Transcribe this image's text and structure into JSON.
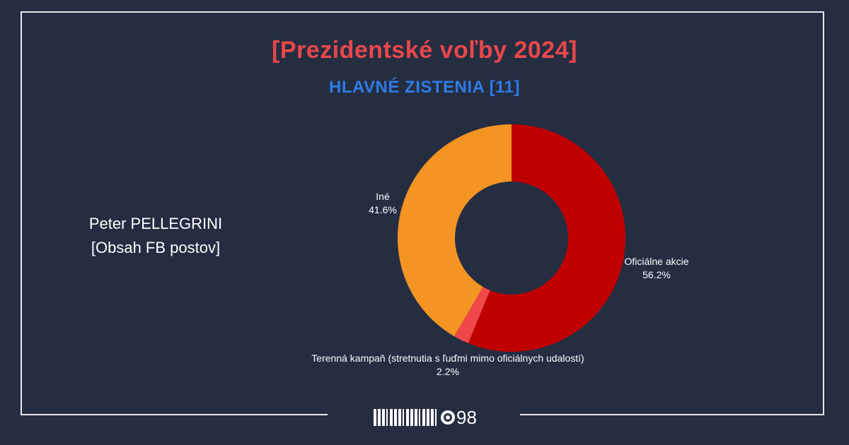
{
  "header": {
    "title": "[Prezidentské voľby 2024]",
    "subtitle": "HLAVNÉ ZISTENIA [11]"
  },
  "side": {
    "line1": "Peter PELLEGRINI",
    "line2": "[Obsah FB postov]"
  },
  "chart_data": {
    "type": "pie",
    "style": "donut",
    "title": "",
    "slices": [
      {
        "label": "Oficiálne akcie",
        "value": 56.2,
        "display": "56.2%",
        "color": "#c00000"
      },
      {
        "label": "Terenná kampaň (stretnutia s ľuďmi mimo oficiálnych udalostí)",
        "value": 2.2,
        "display": "2.2%",
        "color": "#f04848"
      },
      {
        "label": "Iné",
        "value": 41.6,
        "display": "41.6%",
        "color": "#f39423"
      }
    ],
    "legend": "none"
  },
  "logo": {
    "text": "98",
    "name": "MEMO98"
  },
  "colors": {
    "background": "#252d41",
    "title": "#e9474b",
    "subtitle": "#2f7be6",
    "frame": "#e8e8ee"
  }
}
